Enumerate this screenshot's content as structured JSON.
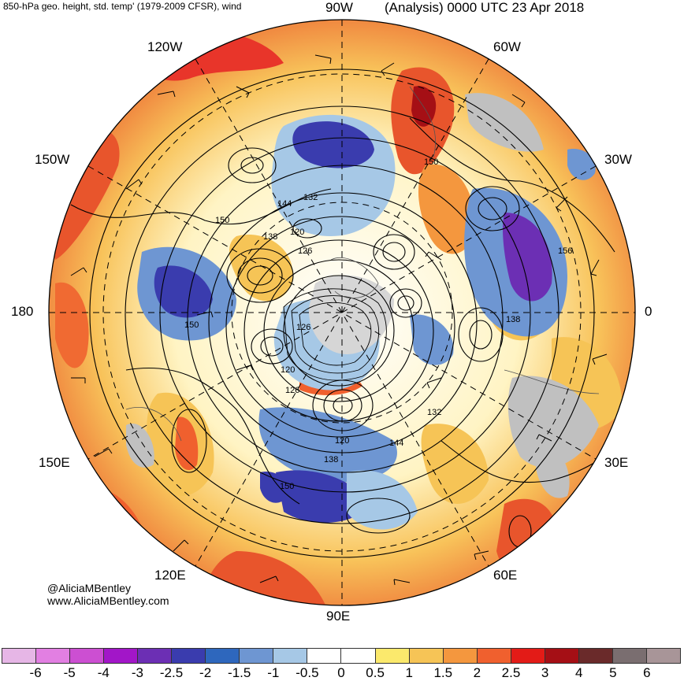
{
  "header": {
    "left_title": "850-hPa geo. height, std. temp' (1979-2009 CFSR), wind",
    "center_label": "90W",
    "right_title": "(Analysis) 0000 UTC 23 Apr 2018"
  },
  "map": {
    "projection": "north-polar-stereographic",
    "longitude_labels": [
      "90W",
      "60W",
      "30W",
      "0",
      "30E",
      "60E",
      "90E",
      "120E",
      "150E",
      "180",
      "150W",
      "120W"
    ],
    "contour_labels": [
      "144",
      "132",
      "120",
      "126",
      "138",
      "150",
      "150",
      "156",
      "138",
      "126",
      "120",
      "126",
      "132",
      "120",
      "138",
      "144",
      "150",
      "150"
    ],
    "colors": {
      "land_gray": "#c0c0c0",
      "cold": "#3f56b8",
      "warm": "#e8552c"
    }
  },
  "credits": {
    "handle": "@AliciaMBentley",
    "website": "www.AliciaMBentley.com"
  },
  "colorbar": {
    "ticks": [
      "-6",
      "-5",
      "-4",
      "-3",
      "-2.5",
      "-2",
      "-1.5",
      "-1",
      "-0.5",
      "0",
      "0.5",
      "1",
      "1.5",
      "2",
      "2.5",
      "3",
      "4",
      "5",
      "6"
    ],
    "colors": [
      "#e6b6e6",
      "#e27fe2",
      "#cc4fd2",
      "#a216c8",
      "#6c2fb4",
      "#3a3cae",
      "#2e67bd",
      "#6e96d2",
      "#a6c8e6",
      "#ffffff",
      "#ffffff",
      "#fbe96c",
      "#f6c456",
      "#f4973e",
      "#f0602e",
      "#e31b17",
      "#a50f15",
      "#6a2a2a",
      "#7a6e70",
      "#a89598"
    ]
  }
}
